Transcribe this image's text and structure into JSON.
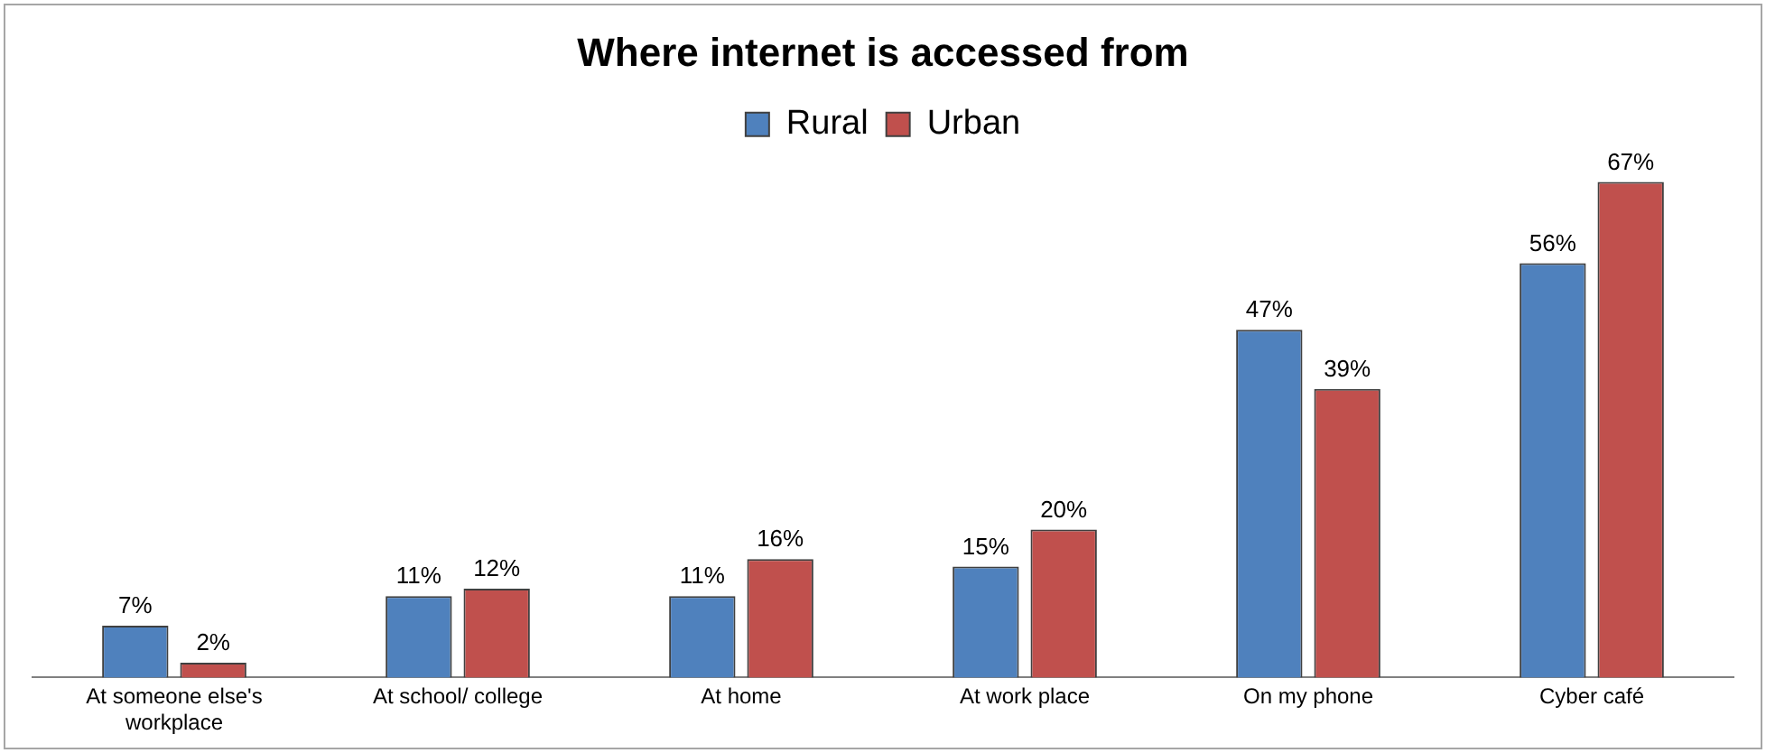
{
  "chart_data": {
    "type": "bar",
    "title": "Where internet is accessed from",
    "categories": [
      "At someone else's workplace",
      "At school/ college",
      "At home",
      "At work place",
      "On my phone",
      "Cyber café"
    ],
    "series": [
      {
        "name": "Rural",
        "color": "#4f81bd",
        "values": [
          7,
          11,
          11,
          15,
          47,
          56
        ],
        "value_labels": [
          "7%",
          "11%",
          "11%",
          "15%",
          "47%",
          "56%"
        ]
      },
      {
        "name": "Urban",
        "color": "#c0504d",
        "values": [
          2,
          12,
          16,
          20,
          39,
          67
        ],
        "value_labels": [
          "2%",
          "12%",
          "16%",
          "20%",
          "39%",
          "67%"
        ]
      }
    ],
    "legend": "top",
    "grid": false,
    "tick_labels": "x"
  }
}
